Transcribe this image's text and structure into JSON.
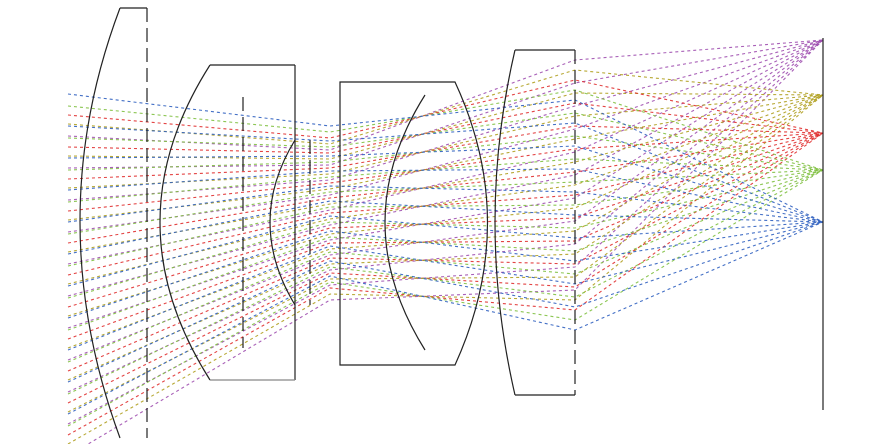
{
  "diagram": {
    "type": "optical-ray-trace",
    "fields": [
      {
        "color": "#a050b0"
      },
      {
        "color": "#b0a020"
      },
      {
        "color": "#e03030"
      },
      {
        "color": "#80c040"
      },
      {
        "color": "#3060c0"
      }
    ],
    "rays_per_field": 11,
    "lens_elements": 5,
    "image_plane": true
  }
}
